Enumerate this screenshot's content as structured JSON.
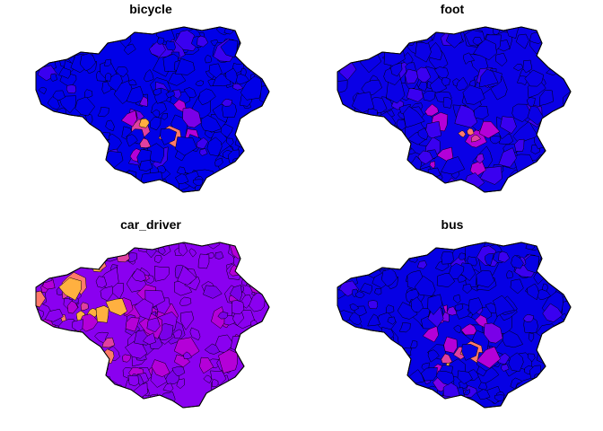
{
  "figure": {
    "kind": "small-multiples choropleth",
    "layout": "2x2 grid",
    "background": "#ffffff",
    "panels": [
      {
        "title": "bicycle",
        "fill": "#0000e8",
        "hot_color": "#d968c0",
        "hotspot_level": 0.35,
        "hot_area": "center-south"
      },
      {
        "title": "foot",
        "fill": "#0a00e6",
        "hot_color": "#ff9a4a",
        "hotspot_level": 0.3,
        "hot_area": "center"
      },
      {
        "title": "car_driver",
        "fill": "#8a00f0",
        "hot_color": "#ff5a7a",
        "hotspot_level": 0.85,
        "hot_area": "west"
      },
      {
        "title": "bus",
        "fill": "#0600e4",
        "hot_color": "#c040d0",
        "hotspot_level": 0.25,
        "hot_area": "center"
      }
    ],
    "palette": [
      "#0000ff",
      "#3a00f0",
      "#7a00e8",
      "#b400d8",
      "#e040a0",
      "#ff7a6a",
      "#ffb040",
      "#ffe000"
    ],
    "border_color": "#000000"
  }
}
